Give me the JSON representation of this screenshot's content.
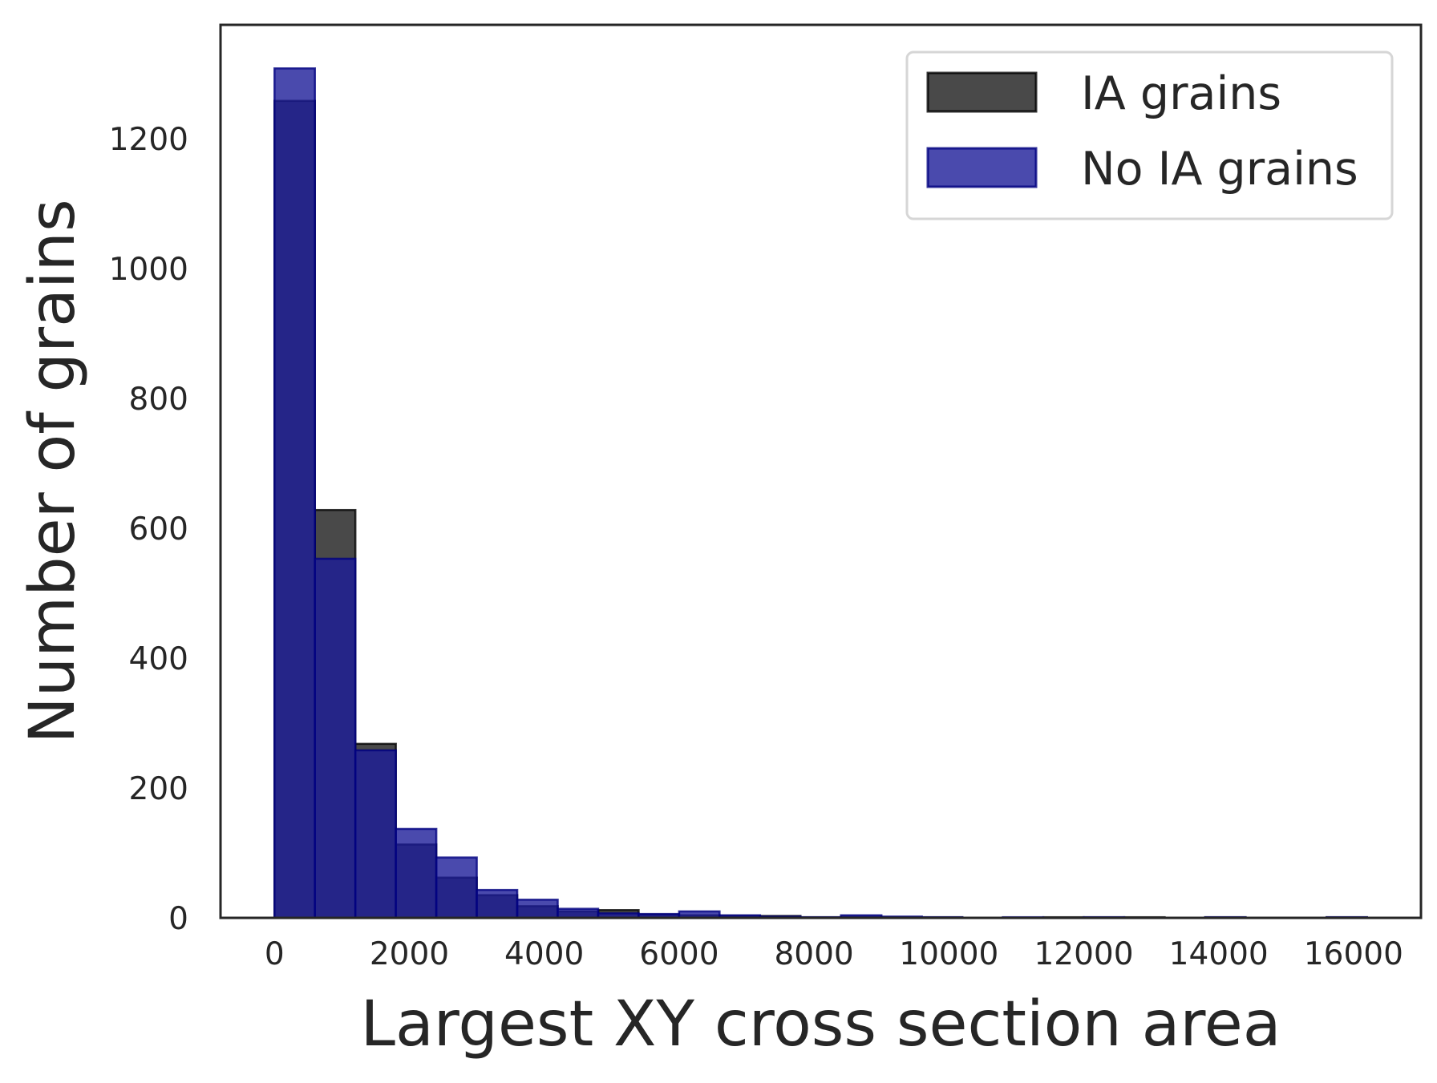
{
  "chart_data": {
    "type": "bar",
    "title": "",
    "xlabel": "Largest XY cross section area",
    "ylabel": "Number of grains",
    "xlim": [
      -800,
      17000
    ],
    "ylim": [
      0,
      1375
    ],
    "x_ticks": [
      0,
      2000,
      4000,
      6000,
      8000,
      10000,
      12000,
      14000,
      16000
    ],
    "y_ticks": [
      0,
      200,
      400,
      600,
      800,
      1000,
      1200
    ],
    "grid": false,
    "legend_position": "top-right",
    "bin_edges": [
      0,
      600,
      1200,
      1800,
      2400,
      3000,
      3600,
      4200,
      4800,
      5400,
      6000,
      6600,
      7200,
      7800,
      8400,
      9000,
      9600,
      10200,
      10800,
      11400,
      12000,
      12600,
      13200,
      13800,
      14400,
      15000,
      15600,
      16200
    ],
    "series": [
      {
        "name": "IA grains",
        "color": "#1c1c1c",
        "edge_color": "#000000",
        "opacity": 0.8,
        "values": [
          1258,
          628,
          268,
          113,
          62,
          35,
          18,
          10,
          12,
          5,
          4,
          3,
          3,
          1,
          2,
          1,
          1,
          0,
          0,
          1,
          1,
          1,
          0,
          1,
          0,
          0,
          1
        ]
      },
      {
        "name": "No IA grains",
        "color": "#1d1d99",
        "edge_color": "#000080",
        "opacity": 0.8,
        "values": [
          1308,
          553,
          258,
          137,
          93,
          43,
          28,
          14,
          7,
          6,
          10,
          4,
          2,
          1,
          4,
          2,
          1,
          0,
          1,
          0,
          1,
          0,
          0,
          1,
          0,
          0,
          1
        ]
      }
    ]
  }
}
